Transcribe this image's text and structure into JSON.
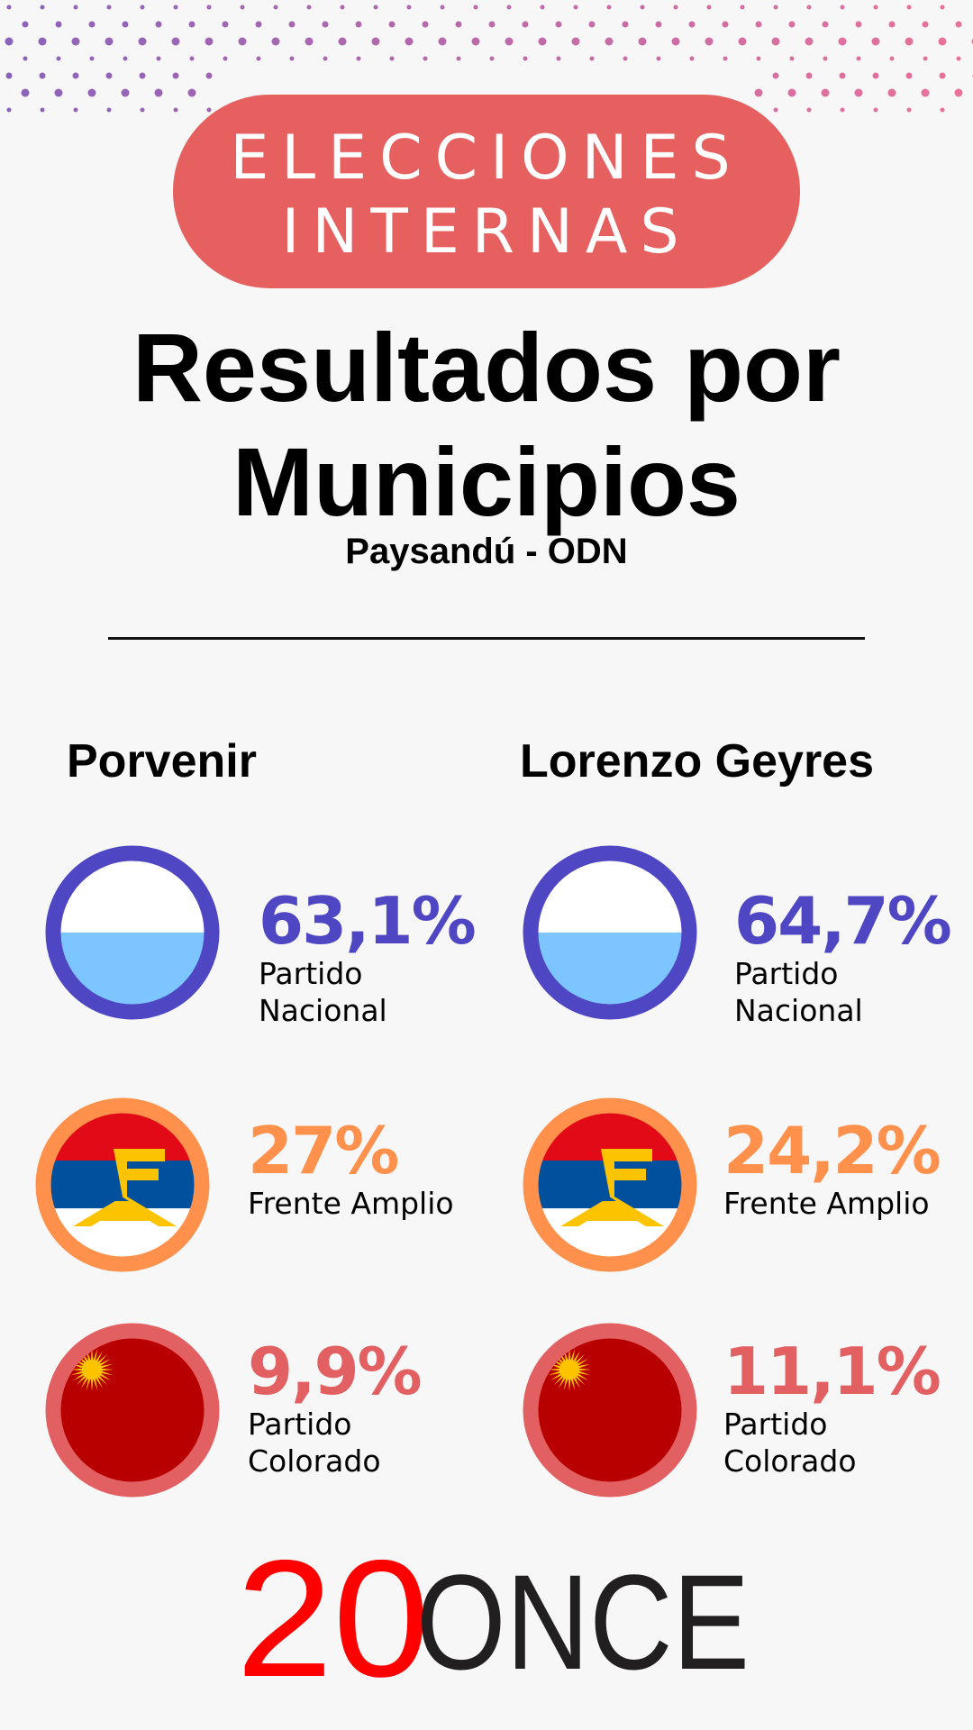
{
  "badge": {
    "line1": "ELECCIONES",
    "line2": "INTERNAS"
  },
  "title": {
    "line1": "Resultados por",
    "line2": "Municipios"
  },
  "subtitle": "Paysandú - ODN",
  "colors": {
    "badge": "#e5605f",
    "nacional": "#4f46c4",
    "frente": "#ff914d",
    "colorado": "#e36062"
  },
  "municipios": [
    {
      "name": "Porvenir",
      "results": [
        {
          "party": "Partido Nacional",
          "line1": "Partido",
          "line2": "Nacional",
          "pct": "63,1%"
        },
        {
          "party": "Frente Amplio",
          "line1": "Frente Amplio",
          "line2": "",
          "pct": "27%"
        },
        {
          "party": "Partido Colorado",
          "line1": "Partido",
          "line2": "Colorado",
          "pct": "9,9%"
        }
      ]
    },
    {
      "name": "Lorenzo Geyres",
      "results": [
        {
          "party": "Partido Nacional",
          "line1": "Partido",
          "line2": "Nacional",
          "pct": "64,7%"
        },
        {
          "party": "Frente Amplio",
          "line1": "Frente Amplio",
          "line2": "",
          "pct": "24,2%"
        },
        {
          "party": "Partido Colorado",
          "line1": "Partido",
          "line2": "Colorado",
          "pct": "11,1%"
        }
      ]
    }
  ],
  "logo": {
    "red": "20",
    "black": "ONCE"
  }
}
